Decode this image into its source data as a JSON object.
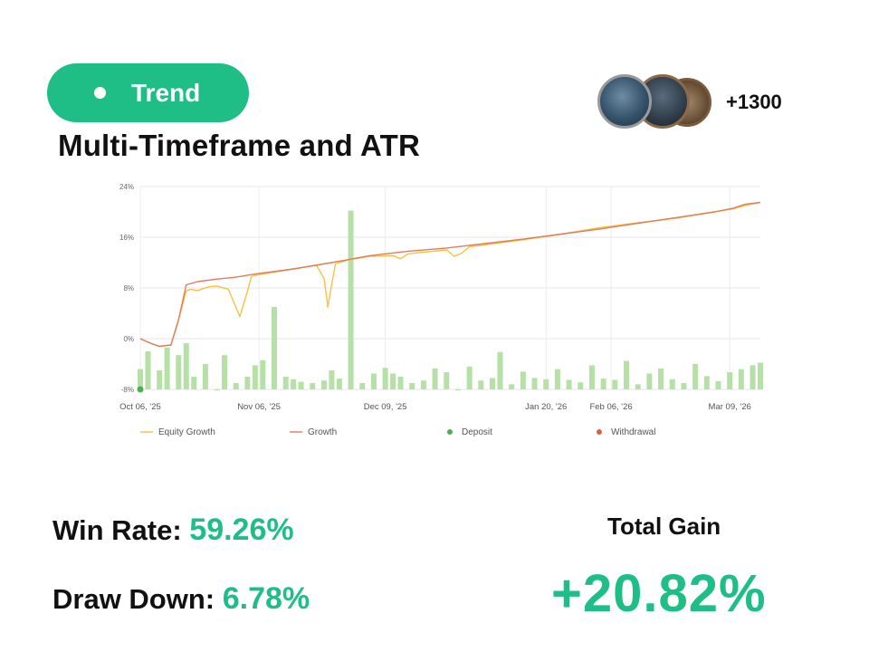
{
  "header": {
    "badge_label": "Trend",
    "title": "Multi-Timeframe and ATR",
    "followers": "+1300"
  },
  "stats": {
    "win_rate_label": "Win Rate",
    "win_rate_value": "59.26%",
    "drawdown_label": "Draw Down",
    "drawdown_value": "6.78%",
    "total_gain_label": "Total Gain",
    "total_gain_value": "+20.82%"
  },
  "colors": {
    "accent": "#1fbe86",
    "equity": "#f5c242",
    "growth": "#e07b5e",
    "deposit_bar": "#b5e0a6",
    "deposit_dot": "#4caf50",
    "withdrawal_dot": "#e06040"
  },
  "chart_data": {
    "type": "line",
    "ylim": [
      -8,
      24
    ],
    "yticks": [
      "24%",
      "16%",
      "8%",
      "0%",
      "-8%"
    ],
    "ytick_values": [
      24,
      16,
      8,
      0,
      -8
    ],
    "xlim": [
      0,
      162
    ],
    "xticks": [
      "Oct 06, '25",
      "Nov 06, '25",
      "Dec 09, '25",
      "Jan 20, '26",
      "Feb 06, '26",
      "Mar 09, '26"
    ],
    "xtick_values": [
      0,
      31,
      64,
      106,
      123,
      154
    ],
    "grid": true,
    "legend_position": "bottom",
    "legend": [
      "Equity Growth",
      "Growth",
      "Deposit",
      "Withdrawal"
    ],
    "series": [
      {
        "name": "Equity Growth",
        "x": [
          0,
          3,
          5,
          8,
          10,
          12,
          13,
          15,
          18,
          20,
          23,
          26,
          28,
          29,
          30,
          31,
          33,
          40,
          46,
          48,
          49,
          50,
          51,
          52,
          55,
          60,
          66,
          68,
          70,
          80,
          82,
          84,
          86,
          90,
          100,
          110,
          120,
          130,
          140,
          150,
          155,
          158,
          162
        ],
        "y": [
          0,
          -0.8,
          -1.2,
          -1,
          3,
          7.5,
          7.8,
          7.6,
          8.2,
          8.3,
          7.8,
          3.5,
          7.5,
          9.8,
          10,
          10.1,
          10.3,
          11,
          11.6,
          9.5,
          5,
          8.5,
          11.8,
          12,
          12.5,
          13,
          13.1,
          12.6,
          13.4,
          14,
          13,
          13.5,
          14.5,
          14.8,
          15.6,
          16.5,
          17.5,
          18.3,
          19,
          20,
          20.5,
          21,
          21.5
        ]
      },
      {
        "name": "Growth",
        "x": [
          0,
          3,
          5,
          8,
          10,
          12,
          15,
          20,
          25,
          30,
          40,
          50,
          60,
          70,
          80,
          90,
          100,
          110,
          120,
          130,
          140,
          150,
          155,
          158,
          162
        ],
        "y": [
          0,
          -0.8,
          -1.2,
          -1,
          3,
          8.5,
          9,
          9.4,
          9.7,
          10.2,
          11,
          12,
          13.1,
          13.8,
          14.3,
          15,
          15.7,
          16.5,
          17.3,
          18.2,
          19.1,
          20,
          20.6,
          21.2,
          21.5
        ]
      }
    ],
    "deposits": {
      "x": [
        0,
        2,
        5,
        7,
        10,
        12,
        14,
        17,
        20,
        22,
        25,
        28,
        30,
        32,
        35,
        38,
        40,
        42,
        45,
        48,
        50,
        52,
        55,
        58,
        61,
        64,
        66,
        68,
        71,
        74,
        77,
        80,
        83,
        86,
        89,
        92,
        94,
        97,
        100,
        103,
        106,
        109,
        112,
        115,
        118,
        121,
        124,
        127,
        130,
        133,
        136,
        139,
        142,
        145,
        148,
        151,
        154,
        157,
        160,
        162
      ],
      "y": [
        -4.8,
        -2,
        -5,
        -1.4,
        -2.6,
        -0.7,
        -6,
        -4,
        -8,
        -2.6,
        -7,
        -6,
        -4.2,
        -3.4,
        5,
        -6,
        -6.4,
        -6.8,
        -7,
        -6.6,
        -5,
        -6.3,
        20.2,
        -7,
        -5.5,
        -4.6,
        -5.5,
        -6,
        -7,
        -6.6,
        -4.7,
        -5.3,
        -8,
        -4.4,
        -6.6,
        -6.2,
        -2.1,
        -7.2,
        -5.2,
        -6.2,
        -6.4,
        -4.8,
        -6.5,
        -6.9,
        -4.2,
        -6.3,
        -6.5,
        -3.5,
        -7.2,
        -5.5,
        -4.7,
        -6.4,
        -7,
        -4,
        -5.9,
        -6.7,
        -5.3,
        -4.8,
        -4.2,
        -3.8
      ]
    },
    "withdrawals": {
      "x": [],
      "y": []
    }
  }
}
